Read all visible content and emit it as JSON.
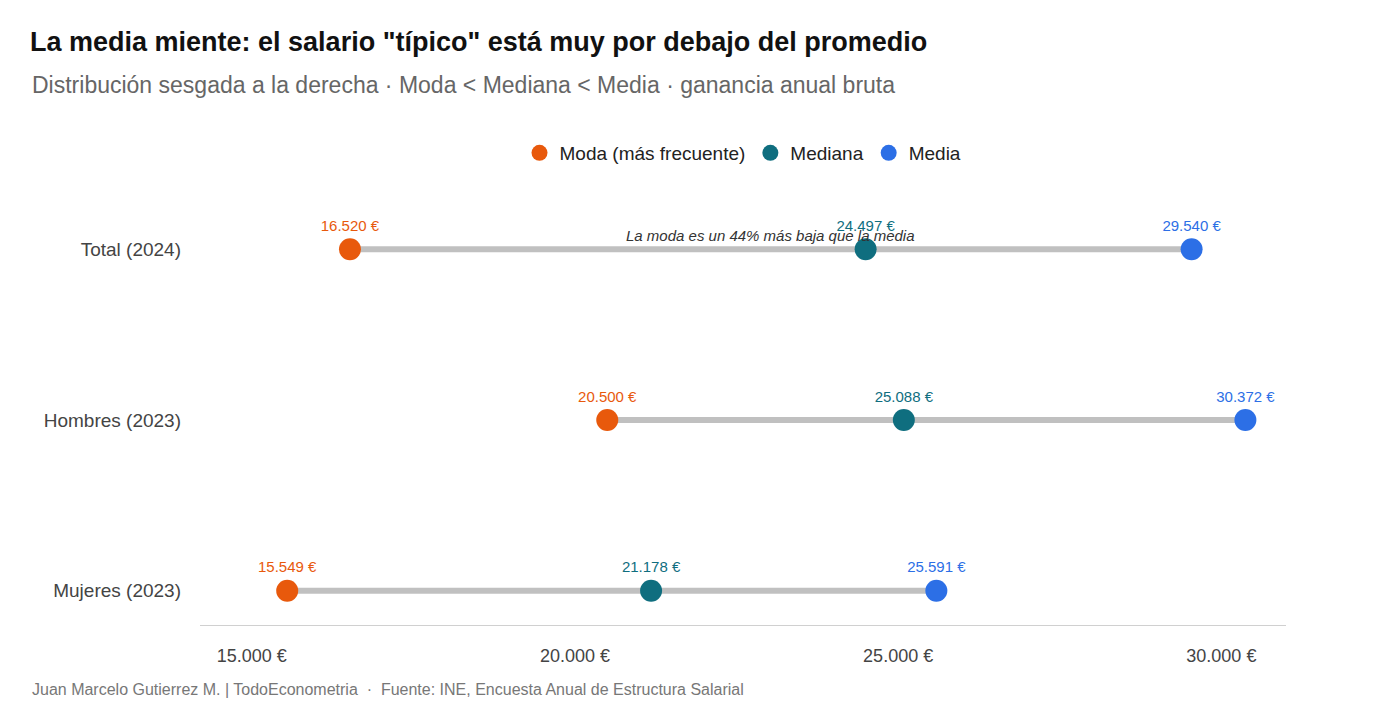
{
  "chart_data": {
    "type": "dumbbell",
    "orientation": "horizontal",
    "title": "La media miente: el salario \"típico\" está muy por debajo del promedio",
    "subtitle": "Distribución sesgada a la derecha · Moda < Mediana < Media · ganancia anual bruta",
    "annotation": "La moda es un 44% más baja que la media",
    "caption": "Juan Marcelo Gutierrez M. | TodoEconometria  ·  Fuente: INE, Encuesta Anual de Estructura Salarial",
    "categories": [
      "Total (2024)",
      "Hombres (2023)",
      "Mujeres (2023)"
    ],
    "series": [
      {
        "name": "Moda (más frecuente)",
        "color": "#E8590C",
        "marker": "circle",
        "values": [
          16520,
          20500,
          15549
        ],
        "value_labels": [
          "16.520 €",
          "20.500 €",
          "15.549 €"
        ]
      },
      {
        "name": "Mediana",
        "color": "#0F6E7F",
        "marker": "circle",
        "values": [
          24497,
          25088,
          21178
        ],
        "value_labels": [
          "24.497 €",
          "25.088 €",
          "21.178 €"
        ]
      },
      {
        "name": "Media",
        "color": "#2C6FE6",
        "marker": "circle",
        "values": [
          29540,
          30372,
          25591
        ],
        "value_labels": [
          "29.540 €",
          "30.372 €",
          "25.591 €"
        ]
      }
    ],
    "xlim": [
      14200,
      31000
    ],
    "xticks": [
      {
        "value": 15000,
        "label": "15.000 €"
      },
      {
        "value": 20000,
        "label": "20.000 €"
      },
      {
        "value": 25000,
        "label": "25.000 €"
      },
      {
        "value": 30000,
        "label": "30.000 €"
      }
    ],
    "grid": false,
    "legend": "top",
    "data_labels": true
  }
}
